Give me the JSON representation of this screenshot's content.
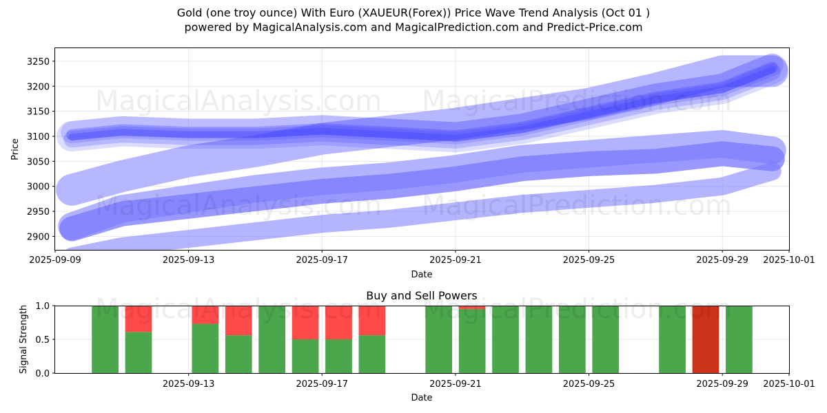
{
  "header": {
    "title": "Gold (one troy ounce) With Euro (XAUEUR(Forex)) Price Wave Trend Analysis (Oct 01 )",
    "subtitle": "powered by MagicalAnalysis.com and MagicalPrediction.com and Predict-Price.com"
  },
  "watermarks": [
    "MagicalAnalysis.com",
    "MagicalPrediction.com"
  ],
  "colors": {
    "band_light": "#aaaaff",
    "band_mid": "#7777ff",
    "wave": "#3c3cff",
    "buy": "#4ca64c",
    "sell": "#ff4a4a",
    "sell_dark": "#cc3318"
  },
  "chart_data": [
    {
      "type": "line",
      "title": "",
      "xlabel": "Date",
      "ylabel": "Price",
      "x_ticks": [
        "2025-09-09",
        "2025-09-13",
        "2025-09-17",
        "2025-09-21",
        "2025-09-25",
        "2025-09-29",
        "2025-10-01"
      ],
      "y_ticks": [
        2900,
        2950,
        3000,
        3050,
        3100,
        3150,
        3200,
        3250
      ],
      "xlim": [
        "2025-09-09",
        "2025-10-01"
      ],
      "ylim": [
        2873,
        3276
      ],
      "grid": true,
      "x_day_index": [
        0.5,
        2,
        4,
        6,
        8,
        10,
        12,
        14,
        16,
        18,
        20,
        21.5
      ],
      "series": [
        {
          "name": "upper band (outer)",
          "values": [
            2993,
            3020,
            3050,
            3070,
            3095,
            3110,
            3125,
            3145,
            3165,
            3195,
            3230,
            3230
          ]
        },
        {
          "name": "lower band (outer)",
          "values": [
            2920,
            2955,
            2975,
            2995,
            3010,
            3020,
            3035,
            3055,
            3065,
            3075,
            3085,
            3072
          ]
        },
        {
          "name": "lower band (inner)",
          "values": [
            2915,
            2945,
            2960,
            2975,
            2990,
            3000,
            3015,
            3035,
            3045,
            3050,
            3065,
            3055
          ]
        },
        {
          "name": "lower band (base)",
          "values": [
            2860,
            2880,
            2895,
            2910,
            2925,
            2935,
            2950,
            2965,
            2975,
            2985,
            3000,
            3030
          ]
        },
        {
          "name": "wave trend",
          "values": [
            3100,
            3110,
            3105,
            3105,
            3112,
            3105,
            3098,
            3115,
            3145,
            3175,
            3195,
            3235
          ]
        }
      ]
    },
    {
      "type": "bar",
      "title": "Buy and Sell Powers",
      "xlabel": "Date",
      "ylabel": "Signal Strength",
      "x_ticks": [
        "2025-09-13",
        "2025-09-17",
        "2025-09-21",
        "2025-09-25",
        "2025-09-29",
        "2025-10-01"
      ],
      "y_ticks": [
        "0.0",
        "0.5",
        "1.0"
      ],
      "xlim": [
        "2025-09-09",
        "2025-10-01"
      ],
      "ylim": [
        0,
        1
      ],
      "grid": true,
      "bar_day_index": [
        1.5,
        2.5,
        4.5,
        5.5,
        6.5,
        7.5,
        8.5,
        9.5,
        11.5,
        12.5,
        13.5,
        14.5,
        15.5,
        16.5,
        18.5,
        19.5,
        20.5
      ],
      "series": [
        {
          "name": "buy",
          "values": [
            1.0,
            0.61,
            0.73,
            0.56,
            1.0,
            0.5,
            0.5,
            0.56,
            1.0,
            0.95,
            1.0,
            1.0,
            1.0,
            1.0,
            1.0,
            0,
            1.0
          ]
        },
        {
          "name": "sell",
          "values": [
            0,
            0.39,
            0.27,
            0.44,
            0,
            0.5,
            0.5,
            0.44,
            0,
            0.05,
            0,
            0,
            0,
            0,
            0,
            1.0,
            0
          ]
        }
      ]
    }
  ]
}
